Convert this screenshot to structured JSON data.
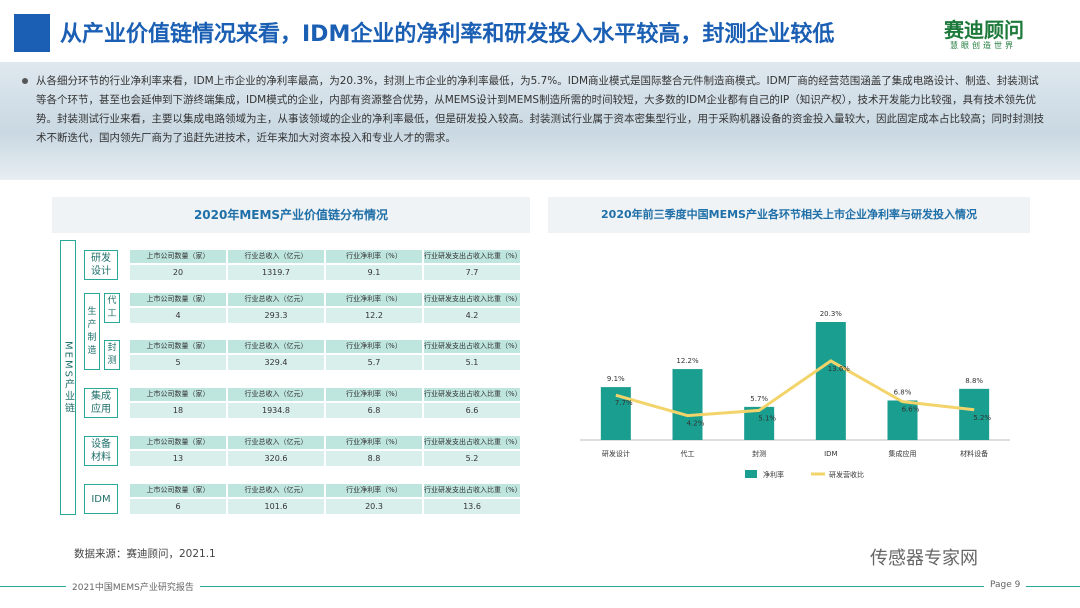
{
  "header": {
    "title": "从产业价值链情况来看，IDM企业的净利率和研发投入水平较高，封测企业较低",
    "logo": "赛迪顾问",
    "slogan": "慧眼创造世界"
  },
  "intro": "从各细分环节的行业净利率来看，IDM上市企业的净利率最高，为20.3%，封测上市企业的净利率最低，为5.7%。IDM商业模式是国际整合元件制造商模式。IDM厂商的经营范围涵盖了集成电路设计、制造、封装测试等各个环节，甚至也会延伸到下游终端集成，IDM模式的企业，内部有资源整合优势，从MEMS设计到MEMS制造所需的时间较短，大多数的IDM企业都有自己的IP（知识产权），技术开发能力比较强，具有技术领先优势。封装测试行业来看，主要以集成电路领域为主，从事该领域的企业的净利率最低，但是研发投入较高。封装测试行业属于资本密集型行业，用于采购机器设备的资金投入量较大，因此固定成本占比较高；同时封测技术不断迭代，国内领先厂商为了追赶先进技术，近年来加大对资本投入和专业人才的需求。",
  "table": {
    "title": "2020年MEMS产业价值链分布情况",
    "side_label": "MEMS产业链",
    "headers": [
      "上市公司数量（家）",
      "行业总收入（亿元）",
      "行业净利率（%）",
      "行业研发支出占收入比重（%）"
    ],
    "rows": [
      {
        "label": "研发设计",
        "values": [
          20,
          1319.7,
          9.1,
          7.7
        ]
      },
      {
        "group": "生产制造",
        "label": "代工",
        "values": [
          4,
          293.3,
          12.2,
          4.2
        ]
      },
      {
        "label": "封测",
        "values": [
          5,
          329.4,
          5.7,
          5.1
        ]
      },
      {
        "label": "集成应用",
        "values": [
          18,
          1934.8,
          6.8,
          6.6
        ]
      },
      {
        "label": "设备材料",
        "values": [
          13,
          320.6,
          8.8,
          5.2
        ]
      },
      {
        "label": "IDM",
        "values": [
          6,
          101.6,
          20.3,
          13.6
        ]
      }
    ]
  },
  "chart_data": {
    "type": "bar",
    "title": "2020年前三季度中国MEMS产业各环节相关上市企业净利率与研发投入情况",
    "categories": [
      "研发设计",
      "代工",
      "封测",
      "IDM",
      "集成应用",
      "材料设备"
    ],
    "series": [
      {
        "name": "净利率",
        "type": "bar",
        "color": "#1a9e8f",
        "values": [
          9.1,
          12.2,
          5.7,
          20.3,
          6.8,
          8.8
        ],
        "value_labels": [
          "9.1%",
          "12.2%",
          "5.7%",
          "20.3%",
          "6.8%",
          "8.8%"
        ]
      },
      {
        "name": "研发营收比",
        "type": "line",
        "color": "#f2d46b",
        "values": [
          7.7,
          4.2,
          5.1,
          13.6,
          6.6,
          5.2
        ],
        "value_labels": [
          "7.7%",
          "4.2%",
          "5.1%",
          "13.6%",
          "6.6%",
          "5.2%"
        ]
      }
    ],
    "legend": "bottom"
  },
  "source": "数据来源：赛迪顾问，2021.1",
  "footer": {
    "report": "2021中国MEMS产业研究报告",
    "page": "Page 9",
    "watermark": "传感器专家网"
  }
}
